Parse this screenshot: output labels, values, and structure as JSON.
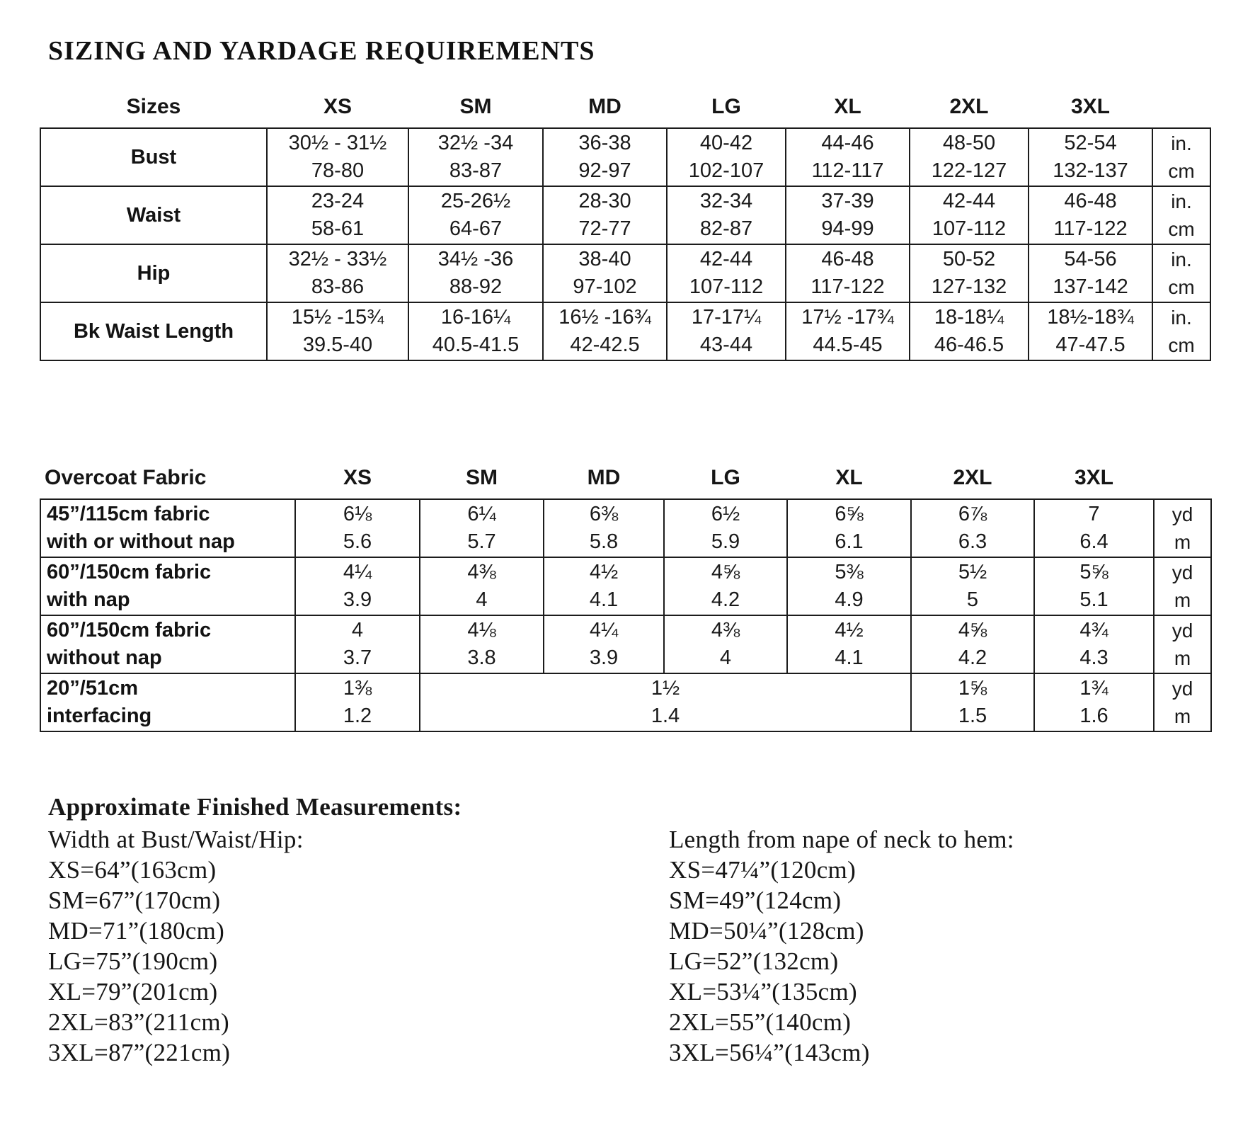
{
  "title": "SIZING AND YARDAGE REQUIREMENTS",
  "size_table": {
    "columns": [
      "Sizes",
      "XS",
      "SM",
      "MD",
      "LG",
      "XL",
      "2XL",
      "3XL"
    ],
    "rows": [
      {
        "label": [
          "Bust"
        ],
        "cells": [
          {
            "lines": [
              "30½ - 31½",
              "78-80"
            ]
          },
          {
            "lines": [
              "32½ -34",
              "83-87"
            ]
          },
          {
            "lines": [
              "36-38",
              "92-97"
            ]
          },
          {
            "lines": [
              "40-42",
              "102-107"
            ]
          },
          {
            "lines": [
              "44-46",
              "112-117"
            ]
          },
          {
            "lines": [
              "48-50",
              "122-127"
            ]
          },
          {
            "lines": [
              "52-54",
              "132-137"
            ]
          }
        ],
        "units": [
          "in.",
          "cm"
        ]
      },
      {
        "label": [
          "Waist"
        ],
        "cells": [
          {
            "lines": [
              "23-24",
              "58-61"
            ]
          },
          {
            "lines": [
              "25-26½",
              "64-67"
            ]
          },
          {
            "lines": [
              "28-30",
              "72-77"
            ]
          },
          {
            "lines": [
              "32-34",
              "82-87"
            ]
          },
          {
            "lines": [
              "37-39",
              "94-99"
            ]
          },
          {
            "lines": [
              "42-44",
              "107-112"
            ]
          },
          {
            "lines": [
              "46-48",
              "117-122"
            ]
          }
        ],
        "units": [
          "in.",
          "cm"
        ]
      },
      {
        "label": [
          "Hip"
        ],
        "cells": [
          {
            "lines": [
              "32½ - 33½",
              "83-86"
            ]
          },
          {
            "lines": [
              "34½ -36",
              "88-92"
            ]
          },
          {
            "lines": [
              "38-40",
              "97-102"
            ]
          },
          {
            "lines": [
              "42-44",
              "107-112"
            ]
          },
          {
            "lines": [
              "46-48",
              "117-122"
            ]
          },
          {
            "lines": [
              "50-52",
              "127-132"
            ]
          },
          {
            "lines": [
              "54-56",
              "137-142"
            ]
          }
        ],
        "units": [
          "in.",
          "cm"
        ]
      },
      {
        "label": [
          "Bk Waist Length"
        ],
        "cells": [
          {
            "lines": [
              "15½ -15¾",
              "39.5-40"
            ]
          },
          {
            "lines": [
              "16-16¼",
              "40.5-41.5"
            ]
          },
          {
            "lines": [
              "16½ -16¾",
              "42-42.5"
            ]
          },
          {
            "lines": [
              "17-17¼",
              "43-44"
            ]
          },
          {
            "lines": [
              "17½ -17¾",
              "44.5-45"
            ]
          },
          {
            "lines": [
              "18-18¼",
              "46-46.5"
            ]
          },
          {
            "lines": [
              "18½-18¾",
              "47-47.5"
            ]
          }
        ],
        "units": [
          "in.",
          "cm"
        ]
      }
    ]
  },
  "fabric_table": {
    "columns": [
      "Overcoat Fabric",
      "XS",
      "SM",
      "MD",
      "LG",
      "XL",
      "2XL",
      "3XL"
    ],
    "rows": [
      {
        "label": [
          "45”/115cm fabric",
          "with or without nap"
        ],
        "cells": [
          {
            "lines": [
              "6⅛",
              "5.6"
            ]
          },
          {
            "lines": [
              "6¼",
              "5.7"
            ]
          },
          {
            "lines": [
              "6⅜",
              "5.8"
            ]
          },
          {
            "lines": [
              "6½",
              "5.9"
            ]
          },
          {
            "lines": [
              "6⅝",
              "6.1"
            ]
          },
          {
            "lines": [
              "6⅞",
              "6.3"
            ]
          },
          {
            "lines": [
              "7",
              "6.4"
            ]
          }
        ],
        "units": [
          "yd",
          "m"
        ]
      },
      {
        "label": [
          "60”/150cm fabric",
          "with nap"
        ],
        "cells": [
          {
            "lines": [
              "4¼",
              "3.9"
            ]
          },
          {
            "lines": [
              "4⅜",
              "4"
            ]
          },
          {
            "lines": [
              "4½",
              "4.1"
            ]
          },
          {
            "lines": [
              "4⅝",
              "4.2"
            ]
          },
          {
            "lines": [
              "5⅜",
              "4.9"
            ]
          },
          {
            "lines": [
              "5½",
              "5"
            ]
          },
          {
            "lines": [
              "5⅝",
              "5.1"
            ]
          }
        ],
        "units": [
          "yd",
          "m"
        ]
      },
      {
        "label": [
          "60”/150cm fabric",
          "without nap"
        ],
        "cells": [
          {
            "lines": [
              "4",
              "3.7"
            ]
          },
          {
            "lines": [
              "4⅛",
              "3.8"
            ]
          },
          {
            "lines": [
              "4¼",
              "3.9"
            ]
          },
          {
            "lines": [
              "4⅜",
              "4"
            ]
          },
          {
            "lines": [
              "4½",
              "4.1"
            ]
          },
          {
            "lines": [
              "4⅝",
              "4.2"
            ]
          },
          {
            "lines": [
              "4¾",
              "4.3"
            ]
          }
        ],
        "units": [
          "yd",
          "m"
        ]
      },
      {
        "label": [
          "20”/51cm",
          "interfacing"
        ],
        "cells": [
          {
            "lines": [
              "1⅜",
              "1.2"
            ]
          },
          {
            "span": 4,
            "lines": [
              "1½",
              "1.4"
            ]
          },
          {
            "lines": [
              "1⅝",
              "1.5"
            ]
          },
          {
            "lines": [
              "1¾",
              "1.6"
            ]
          }
        ],
        "units": [
          "yd",
          "m"
        ]
      }
    ]
  },
  "finished_measurements": {
    "heading": "Approximate Finished Measurements:",
    "left": {
      "subheading": "Width at Bust/Waist/Hip:",
      "lines": [
        "XS=64”(163cm)",
        "SM=67”(170cm)",
        "MD=71”(180cm)",
        "LG=75”(190cm)",
        "XL=79”(201cm)",
        "2XL=83”(211cm)",
        "3XL=87”(221cm)"
      ]
    },
    "right": {
      "subheading": "Length from nape of neck to hem:",
      "lines": [
        "XS=47¼”(120cm)",
        "SM=49”(124cm)",
        "MD=50¼”(128cm)",
        "LG=52”(132cm)",
        "XL=53¼”(135cm)",
        "2XL=55”(140cm)",
        "3XL=56¼”(143cm)"
      ]
    }
  }
}
